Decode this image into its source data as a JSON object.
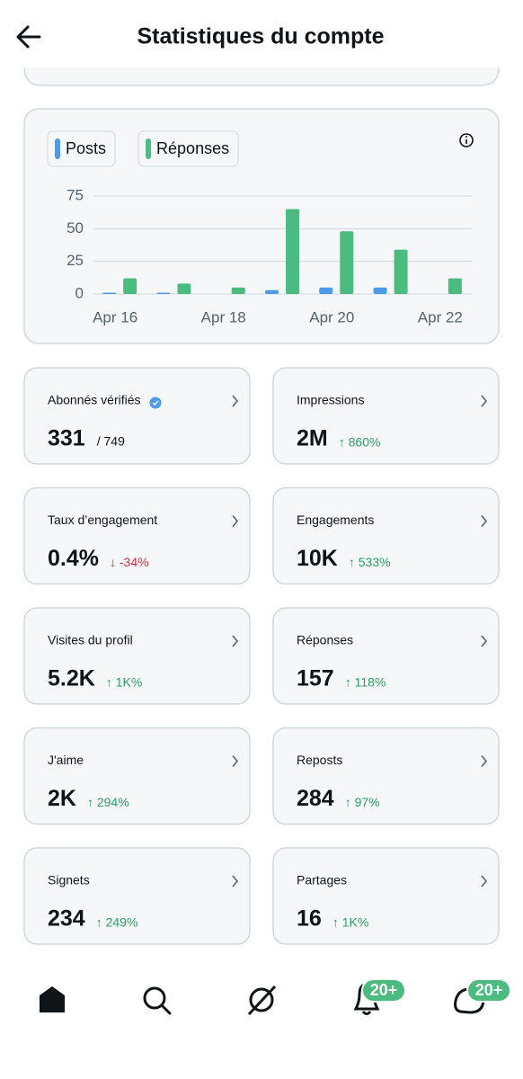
{
  "header": {
    "title": "Statistiques du compte"
  },
  "chart_data": {
    "type": "bar",
    "categories": [
      "Apr 16",
      null,
      "Apr 18",
      null,
      "Apr 20",
      null,
      "Apr 22"
    ],
    "series": [
      {
        "name": "Posts",
        "color": "#4c9ae8",
        "values": [
          1,
          1,
          0,
          3,
          5,
          5,
          0
        ]
      },
      {
        "name": "Réponses",
        "color": "#4cbb7f",
        "values": [
          12,
          8,
          5,
          65,
          48,
          34,
          12
        ]
      }
    ],
    "ylim": [
      0,
      75
    ],
    "yticks": [
      0,
      25,
      50,
      75
    ],
    "grid": true
  },
  "cards": [
    {
      "title": "Abonnés vérifiés",
      "value": "331",
      "sub": "/ 749"
    },
    {
      "title": "Impressions",
      "value": "2M",
      "delta": "↑ 860%",
      "delta_color": "#2e9e63"
    },
    {
      "title": "Taux d’engagement",
      "value": "0.4%",
      "delta": "↓ -34%",
      "delta_color": "#d0303c"
    },
    {
      "title": "Engagements",
      "value": "10K",
      "delta": "↑ 533%",
      "delta_color": "#2e9e63"
    },
    {
      "title": "Visites du profil",
      "value": "5.2K",
      "delta": "↑ 1K%",
      "delta_color": "#2e9e63"
    },
    {
      "title": "Réponses",
      "value": "157",
      "delta": "↑ 118%",
      "delta_color": "#2e9e63"
    },
    {
      "title": "J'aime",
      "value": "2K",
      "delta": "↑ 294%",
      "delta_color": "#2e9e63"
    },
    {
      "title": "Reposts",
      "value": "284",
      "delta": "↑ 97%",
      "delta_color": "#2e9e63"
    },
    {
      "title": "Signets",
      "value": "234",
      "delta": "↑ 249%",
      "delta_color": "#2e9e63"
    },
    {
      "title": "Partages",
      "value": "16",
      "delta": "↑ 1K%",
      "delta_color": "#2e9e63"
    }
  ],
  "nav": {
    "badges": [
      "20+",
      "20+"
    ]
  }
}
